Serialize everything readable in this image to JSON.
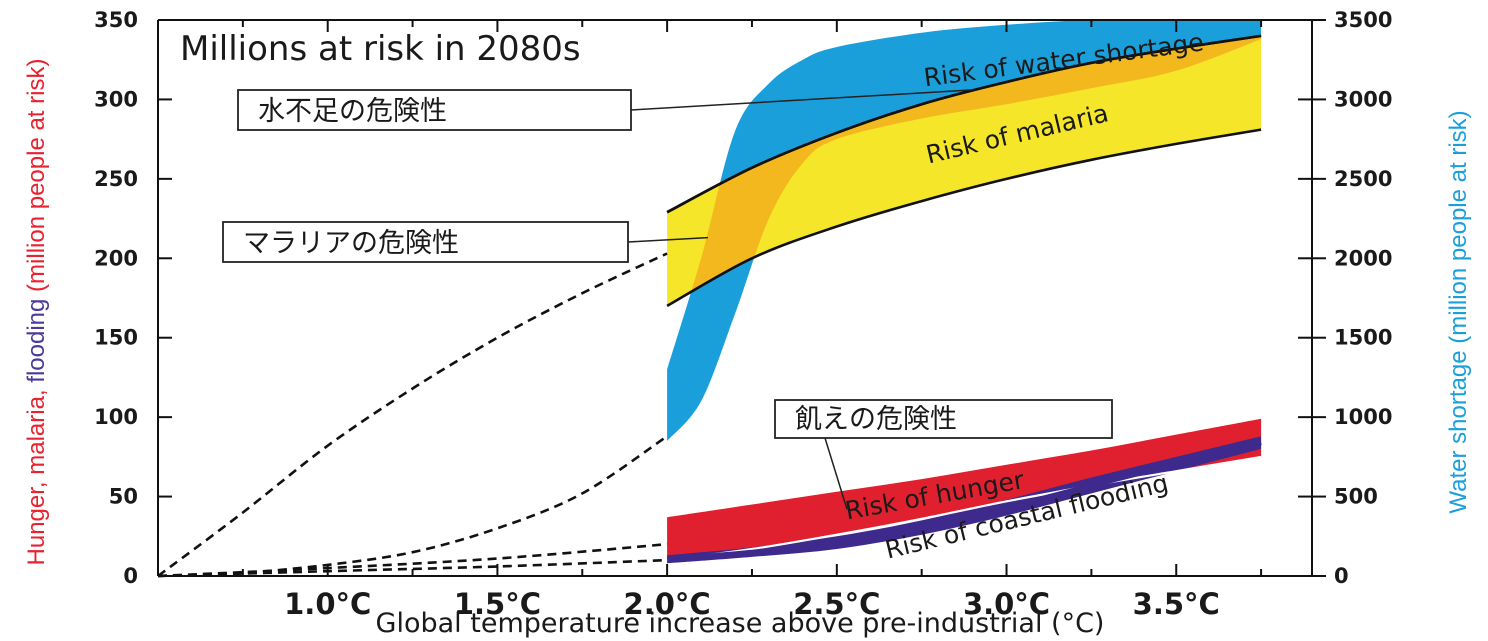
{
  "chart_data": {
    "type": "area",
    "title": "Millions at risk in 2080s",
    "xlabel": "Global temperature increase above pre-industrial (°C)",
    "ylabel_left_parts": [
      {
        "text": "Hunger,",
        "color": "#e8222f"
      },
      {
        "text": " malaria,",
        "color": "#e8222f"
      },
      {
        "text": " flooding",
        "color": "#4a3a9c"
      },
      {
        "text": " (million people at risk)",
        "color": "#e8222f"
      }
    ],
    "ylabel_right": "Water shortage (million people at risk)",
    "xlim": [
      0.5,
      3.9
    ],
    "ylim_left": [
      0,
      350
    ],
    "ylim_right": [
      0,
      3500
    ],
    "x_ticks": [
      {
        "v": 1.0,
        "label": "1.0°C"
      },
      {
        "v": 1.5,
        "label": "1.5°C"
      },
      {
        "v": 2.0,
        "label": "2.0°C"
      },
      {
        "v": 2.5,
        "label": "2.5°C"
      },
      {
        "v": 3.0,
        "label": "3.0°C"
      },
      {
        "v": 3.5,
        "label": "3.5°C"
      }
    ],
    "y_ticks_left": [
      0,
      50,
      100,
      150,
      200,
      250,
      300,
      350
    ],
    "y_ticks_right": [
      0,
      500,
      1000,
      1500,
      2000,
      2500,
      3000,
      3500
    ],
    "series": [
      {
        "name": "Risk of water shortage",
        "axis": "right",
        "color": "#1a9fdb",
        "x": [
          2.0,
          2.1,
          2.2,
          2.3,
          2.4,
          2.5,
          2.75,
          3.0,
          3.25,
          3.5,
          3.75
        ],
        "lower": [
          850,
          1100,
          1650,
          2250,
          2600,
          2750,
          2880,
          2970,
          3070,
          3180,
          3380
        ],
        "upper": [
          1300,
          2000,
          2800,
          3100,
          3250,
          3330,
          3420,
          3470,
          3500,
          3500,
          3500
        ]
      },
      {
        "name": "Risk of malaria",
        "axis": "left",
        "color": "#f5e62a",
        "overlap_color": "#f4b81f",
        "x": [
          2.0,
          2.25,
          2.5,
          2.75,
          3.0,
          3.25,
          3.5,
          3.75
        ],
        "lower": [
          170,
          200,
          220,
          236,
          250,
          262,
          272,
          281
        ],
        "upper": [
          229,
          257,
          279,
          297,
          311,
          323,
          332,
          340
        ]
      },
      {
        "name": "Risk of hunger",
        "axis": "left",
        "color": "#e0202e",
        "x": [
          2.0,
          2.25,
          2.5,
          2.75,
          3.0,
          3.25,
          3.5,
          3.75
        ],
        "lower": [
          10,
          17,
          26,
          36,
          47,
          57,
          66,
          75
        ],
        "upper": [
          37,
          45,
          53,
          61,
          70,
          79,
          89,
          99
        ]
      },
      {
        "name": "Risk of coastal flooding",
        "axis": "left",
        "color": "#3d2a8c",
        "x": [
          2.0,
          2.25,
          2.5,
          2.75,
          3.0,
          3.25,
          3.5,
          3.75
        ],
        "lower": [
          8,
          12,
          17,
          26,
          38,
          52,
          66,
          80
        ],
        "upper": [
          13,
          18,
          25,
          35,
          48,
          62,
          75,
          88
        ]
      }
    ],
    "dashed_projections": [
      {
        "axis": "left",
        "x": [
          0.5,
          0.75,
          1.0,
          1.25,
          1.5,
          1.75,
          2.0
        ],
        "y": [
          0,
          40,
          82,
          118,
          150,
          178,
          203
        ]
      },
      {
        "axis": "right",
        "x": [
          0.5,
          0.75,
          1.0,
          1.25,
          1.5,
          1.75,
          2.0
        ],
        "y": [
          0,
          20,
          70,
          150,
          300,
          520,
          880
        ]
      },
      {
        "axis": "left",
        "x": [
          0.5,
          1.0,
          1.5,
          2.0
        ],
        "y": [
          0,
          5,
          11,
          20
        ]
      },
      {
        "axis": "left",
        "x": [
          0.5,
          1.0,
          1.5,
          2.0
        ],
        "y": [
          0,
          3,
          6,
          10
        ]
      }
    ],
    "callouts": [
      {
        "text": "水不足の危険性",
        "target_series": "Risk of water shortage"
      },
      {
        "text": "マラリアの危険性",
        "target_series": "Risk of malaria"
      },
      {
        "text": "飢えの危険性",
        "target_series": "Risk of hunger"
      }
    ]
  }
}
